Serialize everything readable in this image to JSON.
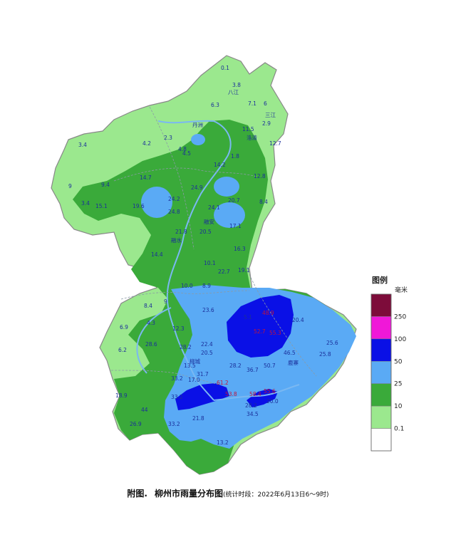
{
  "legend": {
    "title": "图例",
    "unit": "毫米",
    "items": [
      {
        "label": "250",
        "color": "#7d0c3a"
      },
      {
        "label": "100",
        "color": "#f018d8"
      },
      {
        "label": "50",
        "color": "#0a10e6"
      },
      {
        "label": "25",
        "color": "#5aaaf5"
      },
      {
        "label": "10",
        "color": "#3aaa3a"
      },
      {
        "label": "0.1",
        "color": "#9be88e"
      },
      {
        "label": "",
        "color": "#ffffff"
      }
    ]
  },
  "caption": {
    "prefix": "附图.",
    "title": "柳州市雨量分布图",
    "note": "(统计时段：2022年6月13日6～9时)"
  },
  "map": {
    "colors": {
      "light_green": "#9be88e",
      "green": "#3aaa3a",
      "light_blue": "#5aaaf5",
      "blue": "#0a10e6",
      "outline": "#888888",
      "river": "#7ab8f2"
    },
    "labels": [
      {
        "text": "三江",
        "color": "#1b2f9a"
      },
      {
        "text": "融安",
        "color": "#1b2f9a"
      },
      {
        "text": "融水",
        "color": "#1b2f9a"
      },
      {
        "text": "鹿寨",
        "color": "#1b2f9a"
      },
      {
        "text": "柳城",
        "color": "#1b2f9a"
      },
      {
        "text": "八江",
        "color": "#1b2f9a"
      },
      {
        "text": "丹洲",
        "color": "#1b2f9a"
      },
      {
        "text": "洛清",
        "color": "#1b2f9a"
      },
      {
        "text": "0.1",
        "color": "#1b2f9a"
      },
      {
        "text": "3.8",
        "color": "#1b2f9a"
      },
      {
        "text": "6.3",
        "color": "#1b2f9a"
      },
      {
        "text": "7.1",
        "color": "#1b2f9a"
      },
      {
        "text": "6",
        "color": "#1b2f9a"
      },
      {
        "text": "2.9",
        "color": "#1b2f9a"
      },
      {
        "text": "2.3",
        "color": "#1b2f9a"
      },
      {
        "text": "3.4",
        "color": "#1b2f9a"
      },
      {
        "text": "4.2",
        "color": "#1b2f9a"
      },
      {
        "text": "4.8",
        "color": "#1b2f9a"
      },
      {
        "text": "4.5",
        "color": "#1b2f9a"
      },
      {
        "text": "11.5",
        "color": "#1b2f9a"
      },
      {
        "text": "12.7",
        "color": "#1b2f9a"
      },
      {
        "text": "1.8",
        "color": "#1b2f9a"
      },
      {
        "text": "14.2",
        "color": "#1b2f9a"
      },
      {
        "text": "12.8",
        "color": "#1b2f9a"
      },
      {
        "text": "9",
        "color": "#1b2f9a"
      },
      {
        "text": "9.4",
        "color": "#1b2f9a"
      },
      {
        "text": "14.7",
        "color": "#1b2f9a"
      },
      {
        "text": "24.9",
        "color": "#1b2f9a"
      },
      {
        "text": "3.4",
        "color": "#1b2f9a"
      },
      {
        "text": "15.1",
        "color": "#1b2f9a"
      },
      {
        "text": "19.6",
        "color": "#1b2f9a"
      },
      {
        "text": "24.2",
        "color": "#1b2f9a"
      },
      {
        "text": "20.7",
        "color": "#1b2f9a"
      },
      {
        "text": "8.4",
        "color": "#1b2f9a"
      },
      {
        "text": "24.8",
        "color": "#1b2f9a"
      },
      {
        "text": "24.1",
        "color": "#1b2f9a"
      },
      {
        "text": "17.1",
        "color": "#1b2f9a"
      },
      {
        "text": "21.8",
        "color": "#1b2f9a"
      },
      {
        "text": "20.5",
        "color": "#1b2f9a"
      },
      {
        "text": "16.3",
        "color": "#1b2f9a"
      },
      {
        "text": "14.4",
        "color": "#1b2f9a"
      },
      {
        "text": "10.1",
        "color": "#1b2f9a"
      },
      {
        "text": "22.7",
        "color": "#1b2f9a"
      },
      {
        "text": "19.1",
        "color": "#1b2f9a"
      },
      {
        "text": "10.0",
        "color": "#1b2f9a"
      },
      {
        "text": "8.9",
        "color": "#1b2f9a"
      },
      {
        "text": "8.4",
        "color": "#1b2f9a"
      },
      {
        "text": "9",
        "color": "#1b2f9a"
      },
      {
        "text": "4.3",
        "color": "#1b2f9a"
      },
      {
        "text": "6.9",
        "color": "#1b2f9a"
      },
      {
        "text": "23.6",
        "color": "#1b2f9a"
      },
      {
        "text": "12.3",
        "color": "#1b2f9a"
      },
      {
        "text": "20.4",
        "color": "#1b2f9a"
      },
      {
        "text": "25.6",
        "color": "#1b2f9a"
      },
      {
        "text": "6.2",
        "color": "#1b2f9a"
      },
      {
        "text": "28.6",
        "color": "#1b2f9a"
      },
      {
        "text": "28.2",
        "color": "#1b2f9a"
      },
      {
        "text": "22.4",
        "color": "#1b2f9a"
      },
      {
        "text": "20.5",
        "color": "#1b2f9a"
      },
      {
        "text": "46.5",
        "color": "#1b2f9a"
      },
      {
        "text": "25.8",
        "color": "#1b2f9a"
      },
      {
        "text": "13.5",
        "color": "#1b2f9a"
      },
      {
        "text": "17.0",
        "color": "#1b2f9a"
      },
      {
        "text": "36.7",
        "color": "#1b2f9a"
      },
      {
        "text": "50.7",
        "color": "#1b2f9a"
      },
      {
        "text": "28.2",
        "color": "#1b2f9a"
      },
      {
        "text": "33.2",
        "color": "#1b2f9a"
      },
      {
        "text": "31.7",
        "color": "#1b2f9a"
      },
      {
        "text": "33.2",
        "color": "#1b2f9a"
      },
      {
        "text": "44",
        "color": "#1b2f9a"
      },
      {
        "text": "28.2",
        "color": "#1b2f9a"
      },
      {
        "text": "34.5",
        "color": "#1b2f9a"
      },
      {
        "text": "20.0",
        "color": "#1b2f9a"
      },
      {
        "text": "33.2",
        "color": "#1b2f9a"
      },
      {
        "text": "21.8",
        "color": "#1b2f9a"
      },
      {
        "text": "26.9",
        "color": "#1b2f9a"
      },
      {
        "text": "13.2",
        "color": "#1b2f9a"
      },
      {
        "text": "18.9",
        "color": "#1b2f9a"
      },
      {
        "text": "5.1",
        "color": "#1b2f9a"
      },
      {
        "text": "48.9",
        "color": "#c0143c"
      },
      {
        "text": "52.7",
        "color": "#c0143c"
      },
      {
        "text": "55.3",
        "color": "#c0143c"
      },
      {
        "text": "61.2",
        "color": "#c0143c"
      },
      {
        "text": "53.8",
        "color": "#c0143c"
      },
      {
        "text": "58.4",
        "color": "#c0143c"
      },
      {
        "text": "55.6",
        "color": "#c0143c"
      },
      {
        "text": "52.3",
        "color": "#c0143c"
      }
    ]
  }
}
